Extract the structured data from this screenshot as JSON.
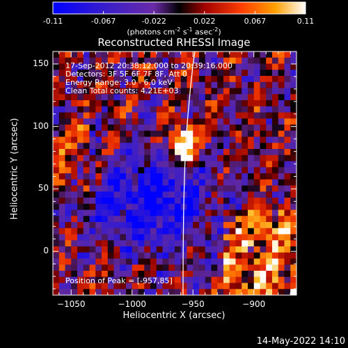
{
  "colorbar": {
    "tick_labels": [
      "-0.11",
      "-0.067",
      "-0.022",
      "0.022",
      "0.067",
      "0.11"
    ],
    "unit_base": "(photons cm",
    "unit_exp1": "-2",
    "unit_mid": " s",
    "unit_exp2": "-1",
    "unit_tail": " asec",
    "unit_exp3": "-2",
    "unit_close": ")",
    "range": [
      -0.11,
      0.11
    ]
  },
  "plot": {
    "title": "Reconstructed RHESSI Image",
    "info_lines": [
      "17-Sep-2012 20:38:12.000 to 20:39:16.000",
      "Detectors: 3F 5F 6F 7F 8F, Att 0",
      "Energy Range: 3.0 - 6.0 keV",
      "Clean     Total counts: 4.21E+03"
    ],
    "peak_label": "Position of Peak = [-957,85]",
    "peak": [
      -957,
      85
    ],
    "xlabel": "Heliocentric X (arcsec)",
    "ylabel": "Heliocentric Y (arcsec)",
    "xlim": [
      -1065,
      -865
    ],
    "ylim": [
      -35,
      160
    ],
    "x_ticks": [
      -1050,
      -1000,
      -950,
      -900
    ],
    "x_tick_labels": [
      "−1050",
      "−1000",
      "−950",
      "−900"
    ],
    "y_ticks": [
      0,
      50,
      100,
      150
    ],
    "y_tick_labels": [
      "0",
      "50",
      "100",
      "150"
    ]
  },
  "footer": {
    "date": "14-May-2022 14:10"
  }
}
